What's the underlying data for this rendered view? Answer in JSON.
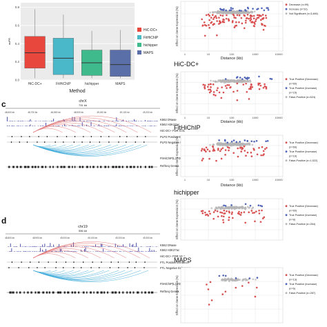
{
  "panels": {
    "c": "c",
    "d": "d"
  },
  "boxplot": {
    "ylabel": "auPR",
    "xlabel": "Method",
    "legend": [
      {
        "label": "HiC-DC+",
        "color": "#e8473d"
      },
      {
        "label": "FitHiChIP",
        "color": "#4bb8c9"
      },
      {
        "label": "hichipper",
        "color": "#3fba8c"
      },
      {
        "label": "MAPS",
        "color": "#5a6fa8"
      }
    ]
  },
  "chart_data": [
    {
      "type": "box",
      "title": "",
      "xlabel": "Method",
      "ylabel": "auPR",
      "categories": [
        "HiC-DC+",
        "FitHiChIP",
        "hichipper",
        "MAPS"
      ],
      "boxes": [
        {
          "name": "HiC-DC+",
          "whisker_low": 0.02,
          "q1": 0.13,
          "median": 0.3,
          "q3": 0.48,
          "whisker_high": 0.78
        },
        {
          "name": "FitHiChIP",
          "whisker_low": 0.02,
          "q1": 0.06,
          "median": 0.24,
          "q3": 0.46,
          "whisker_high": 0.72
        },
        {
          "name": "hichipper",
          "whisker_low": 0.02,
          "q1": 0.05,
          "median": 0.19,
          "q3": 0.33,
          "whisker_high": 0.54
        },
        {
          "name": "MAPS",
          "whisker_low": 0.02,
          "q1": 0.04,
          "median": 0.17,
          "q3": 0.33,
          "whisker_high": 0.55
        }
      ],
      "ylim": [
        0,
        0.85
      ],
      "grid": true
    },
    {
      "type": "scatter",
      "xlabel": "Distance (kb)",
      "ylabel": "Effect on Gene Expression (%)",
      "xscale": "log",
      "legend": [
        "Decrease (n=99)",
        "Increase (n=31)",
        "Not Significant (n=3,466)"
      ]
    },
    {
      "type": "scatter",
      "title": "HiC-DC+",
      "xlabel": "Distance (kb)",
      "ylabel": "Effect on Gene Expression (%)",
      "xscale": "log",
      "legend": [
        "True Positive (Decrease)",
        "(n=60)",
        "True Positive (Increase)",
        "(n=15)",
        "False-Positive (n=624)"
      ]
    },
    {
      "type": "scatter",
      "title": "FitHiChIP",
      "xlabel": "Distance (kb)",
      "ylabel": "Effect on Gene Expression (%)",
      "xscale": "log",
      "legend": [
        "True Positive (Decrease)",
        "(n=69)",
        "True Positive (Increase)",
        "(n=19)",
        "False-Positive (n=1,522)"
      ]
    },
    {
      "type": "scatter",
      "title": "hichipper",
      "ylabel": "Effect on Gene Expression (%)",
      "xscale": "log",
      "legend": [
        "True Positive (Decrease)",
        "(n=60)",
        "True Positive (Increase)",
        "(n=8)",
        "False-Positive (n=264)"
      ]
    },
    {
      "type": "scatter",
      "title": "MAPS",
      "ylabel": "Effect on Gene Expression (%)",
      "xscale": "log",
      "legend": [
        "True Positive (Decrease)",
        "(n=13)",
        "True Positive (Increase)",
        "(n=6)",
        "False-Positive (n=287)"
      ]
    }
  ],
  "xticks_log": [
    "1",
    "10",
    "100",
    "1000",
    "10000"
  ],
  "genome_c": {
    "chrom": "chrX",
    "span": "731 kb",
    "positions": [
      "48,600 kb",
      "48,700 kb",
      "48,800 kb",
      "48,900 kb",
      "49,000 kb",
      "49,100 kb",
      "49,200 kb"
    ],
    "tracks": [
      "K562 DNase",
      "K562 H3K27ac",
      "HiC-DC+ FDR 0.01",
      "PLP2 Positive Enhancer",
      "PLP2 Negative Enhancer",
      "FitHiChIP(L) FDR 0.01",
      "RefSeq Genes"
    ]
  },
  "genome_d": {
    "chrom": "chr19",
    "span": "556 kb",
    "positions": [
      "48,800 kb",
      "48,900 kb",
      "49,000 kb",
      "49,100 kb",
      "49,200 kb",
      "49,300 kb"
    ],
    "tracks": [
      "K562 DNase",
      "K562 H3K27ac",
      "HiC-DC+ FDR 10⁻⁷",
      "FTL Positive Enhancer",
      "FTL Negative Enhancer",
      "FitHiChIP(L) FDR 10⁻⁷",
      "RefSeq Genes"
    ]
  },
  "colors": {
    "arc_red": "#e06a6a",
    "arc_blue": "#3aa8d8",
    "decrease": "#d94f4f",
    "increase": "#5166b8",
    "not_significant": "#b5b5b5",
    "signal": "#3b3fa0"
  }
}
